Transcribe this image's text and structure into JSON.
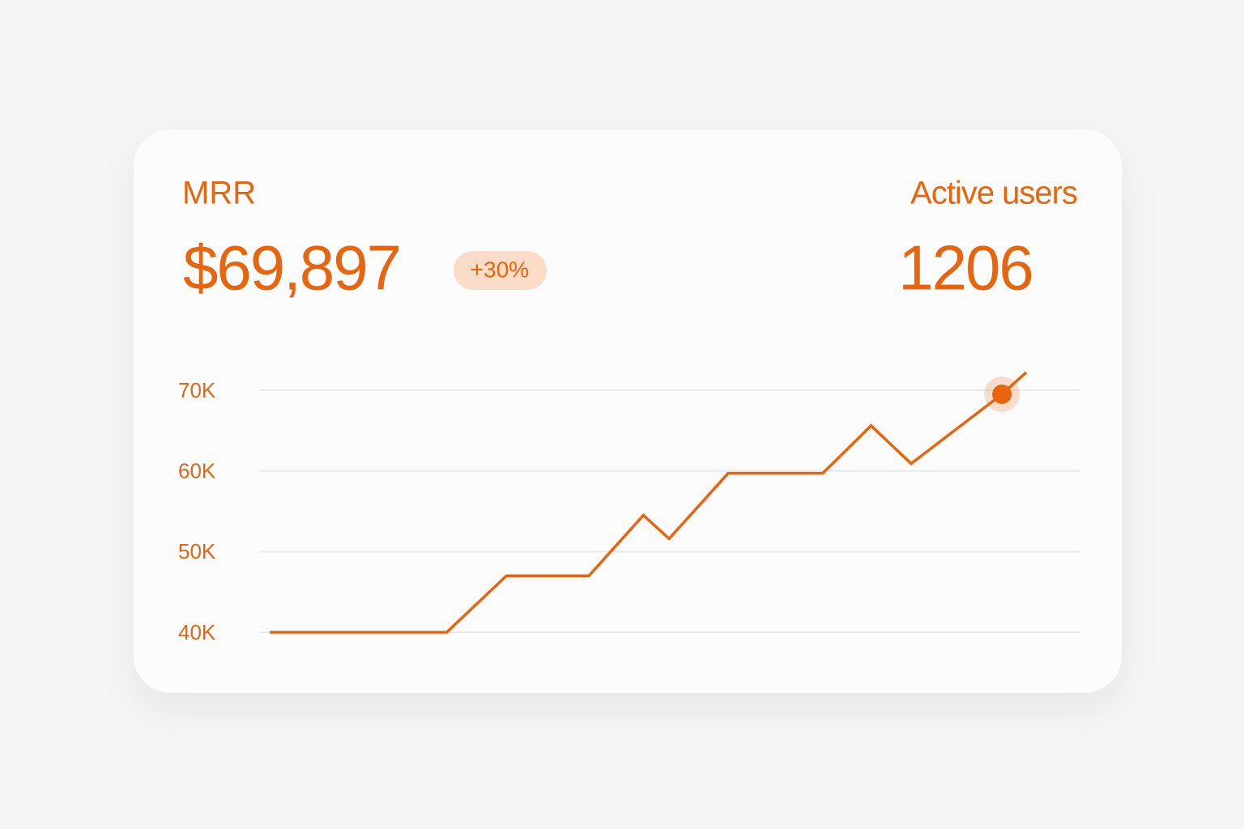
{
  "kpis": [
    {
      "label": "MRR",
      "value": "$69,897",
      "change": "+30%"
    },
    {
      "label": "Active users",
      "value": "1206"
    }
  ],
  "chart_data": {
    "type": "line",
    "x": [
      0,
      23.4,
      31.3,
      42.2,
      49.4,
      52.8,
      60.6,
      73.1,
      79.5,
      84.8,
      96.8,
      100
    ],
    "series": [
      {
        "color": "#e8650f",
        "values": [
          40000,
          40000,
          47000,
          47000,
          54500,
          51600,
          59700,
          59700,
          65600,
          60900,
          69500,
          72200
        ]
      }
    ],
    "marker_index": 10,
    "xlim": [
      0,
      100
    ],
    "ylim": [
      40000,
      70000
    ],
    "yticks": [
      {
        "value": 40000,
        "label": "40K"
      },
      {
        "value": 50000,
        "label": "50K"
      },
      {
        "value": 60000,
        "label": "60K"
      },
      {
        "value": 70000,
        "label": "70K"
      }
    ],
    "grid": true
  }
}
